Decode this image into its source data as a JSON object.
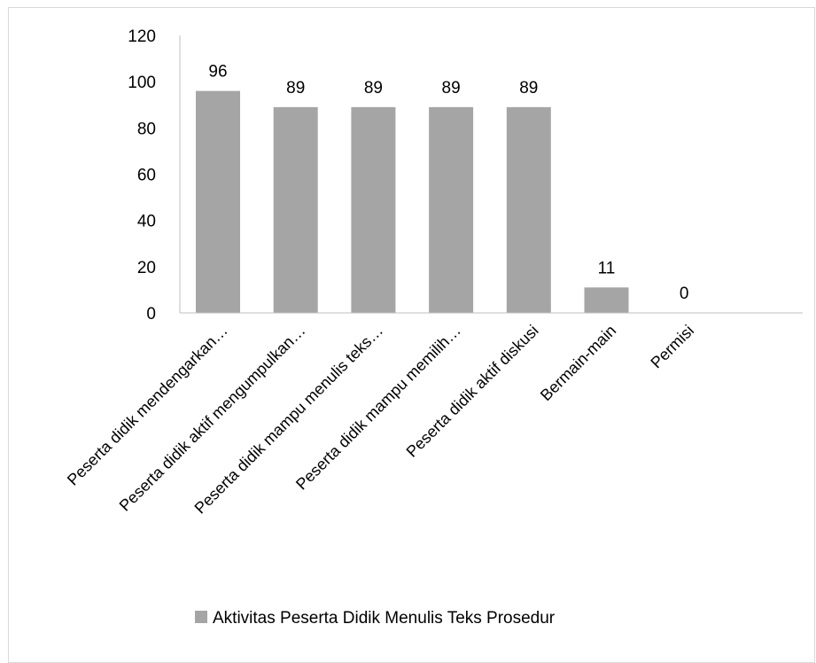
{
  "chart_data": {
    "type": "bar",
    "categories": [
      "Peserta didik mendengarkan…",
      "Peserta didik aktif mengumpulkan…",
      "Peserta didik mampu menulis teks…",
      "Peserta didik mampu memilih…",
      "Peserta didik aktif diskusi",
      "Bermain-main",
      "Permisi"
    ],
    "series": [
      {
        "name": "Aktivitas Peserta Didik Menulis Teks Prosedur",
        "values": [
          96,
          89,
          89,
          89,
          89,
          11,
          0
        ],
        "color": "#a5a5a5"
      }
    ],
    "data_labels": [
      "96",
      "89",
      "89",
      "89",
      "89",
      "11",
      "0"
    ],
    "y_ticks": [
      "0",
      "20",
      "40",
      "60",
      "80",
      "100",
      "120"
    ],
    "ylim": [
      0,
      120
    ],
    "grid": false,
    "legend_position": "bottom",
    "title": "",
    "xlabel": "",
    "ylabel": ""
  }
}
